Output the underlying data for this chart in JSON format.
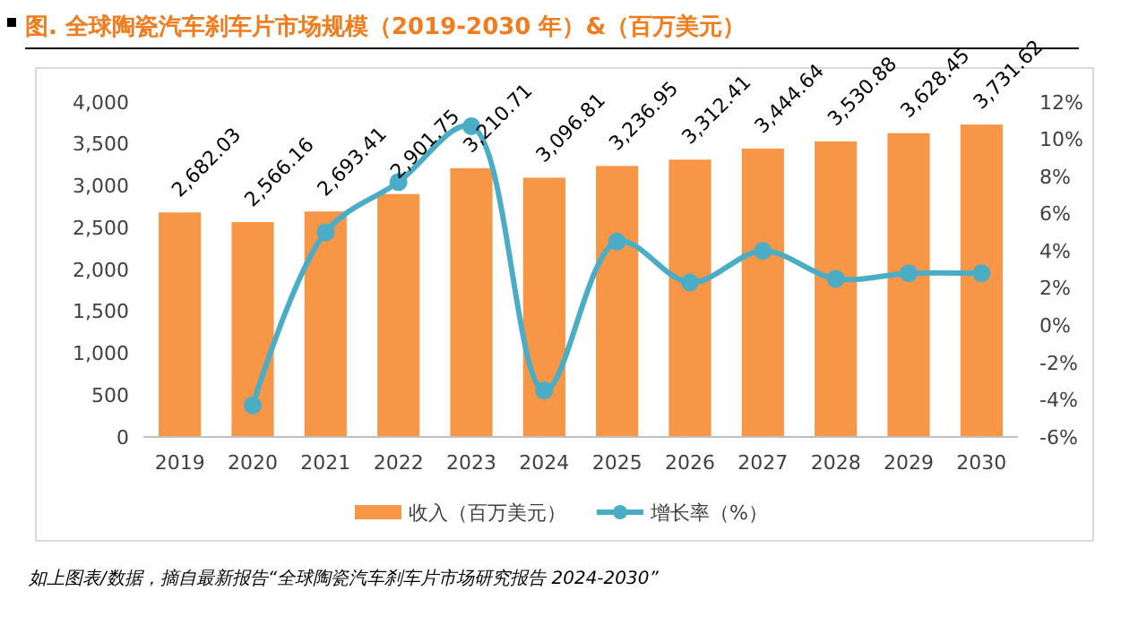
{
  "chart_data": {
    "type": "bar",
    "title": "图.  全球陶瓷汽车刹车片市场规模（2019-2030 年）&（百万美元）",
    "categories": [
      "2019",
      "2020",
      "2021",
      "2022",
      "2023",
      "2024",
      "2025",
      "2026",
      "2027",
      "2028",
      "2029",
      "2030"
    ],
    "series": [
      {
        "name": "收入（百万美元）",
        "color": "#f79646",
        "values": [
          2682.03,
          2566.16,
          2693.41,
          2901.75,
          3210.71,
          3096.81,
          3236.95,
          3312.41,
          3444.64,
          3530.88,
          3628.45,
          3731.62
        ]
      },
      {
        "name": "增长率（%）",
        "type": "line",
        "axis": "y2",
        "color": "#4bacc6",
        "values": [
          null,
          -4.3,
          5.0,
          7.7,
          10.7,
          -3.5,
          4.5,
          2.3,
          4.0,
          2.5,
          2.8,
          2.8
        ]
      }
    ],
    "value_labels": [
      "2,682.03",
      "2,566.16",
      "2,693.41",
      "2,901.75",
      "3,210.71",
      "3,096.81",
      "3,236.95",
      "3,312.41",
      "3,444.64",
      "3,530.88",
      "3,628.45",
      "3,731.62"
    ],
    "ylim": [
      0,
      4000
    ],
    "yticks": [
      {
        "value": 0,
        "label": "0"
      },
      {
        "value": 500,
        "label": "500"
      },
      {
        "value": 1000,
        "label": "1,000"
      },
      {
        "value": 1500,
        "label": "1,500"
      },
      {
        "value": 2000,
        "label": "2,000"
      },
      {
        "value": 2500,
        "label": "2,500"
      },
      {
        "value": 3000,
        "label": "3,000"
      },
      {
        "value": 3500,
        "label": "3,500"
      },
      {
        "value": 4000,
        "label": "4,000"
      }
    ],
    "y2lim": [
      -6,
      12
    ],
    "y2ticks": [
      {
        "value": -6,
        "label": "-6%"
      },
      {
        "value": -4,
        "label": "-4%"
      },
      {
        "value": -2,
        "label": "-2%"
      },
      {
        "value": 0,
        "label": "0%"
      },
      {
        "value": 2,
        "label": "2%"
      },
      {
        "value": 4,
        "label": "4%"
      },
      {
        "value": 6,
        "label": "6%"
      },
      {
        "value": 8,
        "label": "8%"
      },
      {
        "value": 10,
        "label": "10%"
      },
      {
        "value": 12,
        "label": "12%"
      }
    ],
    "grid": false,
    "legend": "bottom",
    "marker": "circle",
    "annotations": [
      "如上图表/数据，摘自最新报告“全球陶瓷汽车刹车片市场研究报告 2024-2030”"
    ]
  }
}
